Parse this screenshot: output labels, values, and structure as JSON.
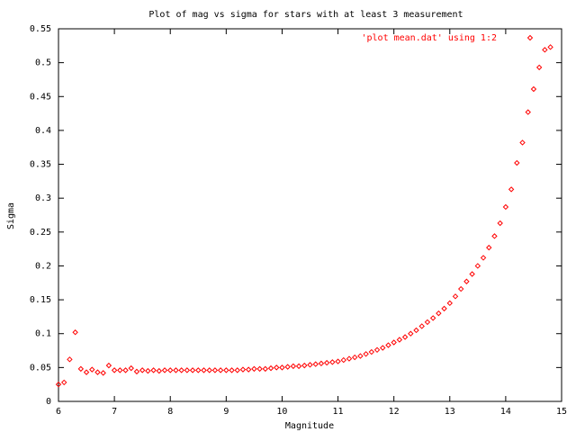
{
  "chart_data": {
    "type": "scatter",
    "title": "Plot of mag vs sigma for stars with at least 3 measurement",
    "x_label": "Magnitude",
    "y_label": "Sigma",
    "legend": "top-right",
    "xlim": [
      6,
      15
    ],
    "xticks": [
      6,
      7,
      8,
      9,
      10,
      11,
      12,
      13,
      14,
      15
    ],
    "ylim": [
      0,
      0.55
    ],
    "yticks": [
      0,
      0.05,
      0.1,
      0.15,
      0.2,
      0.25,
      0.3,
      0.35,
      0.4,
      0.45,
      0.5,
      0.55
    ],
    "series": [
      {
        "name": "'plot mean.dat' using 1:2",
        "color": "#ff0000",
        "x": [
          6.0,
          6.1,
          6.2,
          6.3,
          6.4,
          6.5,
          6.6,
          6.7,
          6.8,
          6.9,
          7.0,
          7.1,
          7.2,
          7.3,
          7.4,
          7.5,
          7.6,
          7.7,
          7.8,
          7.9,
          8.0,
          8.1,
          8.2,
          8.3,
          8.4,
          8.5,
          8.6,
          8.7,
          8.8,
          8.9,
          9.0,
          9.1,
          9.2,
          9.3,
          9.4,
          9.5,
          9.6,
          9.7,
          9.8,
          9.9,
          10.0,
          10.1,
          10.2,
          10.3,
          10.4,
          10.5,
          10.6,
          10.7,
          10.8,
          10.9,
          11.0,
          11.1,
          11.2,
          11.3,
          11.4,
          11.5,
          11.6,
          11.7,
          11.8,
          11.9,
          12.0,
          12.1,
          12.2,
          12.3,
          12.4,
          12.5,
          12.6,
          12.7,
          12.8,
          12.9,
          13.0,
          13.1,
          13.2,
          13.3,
          13.4,
          13.5,
          13.6,
          13.7,
          13.8,
          13.9,
          14.0,
          14.1,
          14.2,
          14.3,
          14.4,
          14.5,
          14.6,
          14.7,
          14.8
        ],
        "values": [
          0.025,
          0.028,
          0.062,
          0.102,
          0.048,
          0.043,
          0.047,
          0.043,
          0.042,
          0.053,
          0.046,
          0.046,
          0.046,
          0.049,
          0.044,
          0.046,
          0.045,
          0.046,
          0.045,
          0.046,
          0.046,
          0.046,
          0.046,
          0.046,
          0.046,
          0.046,
          0.046,
          0.046,
          0.046,
          0.046,
          0.046,
          0.046,
          0.046,
          0.047,
          0.047,
          0.048,
          0.048,
          0.048,
          0.049,
          0.05,
          0.05,
          0.051,
          0.052,
          0.052,
          0.053,
          0.054,
          0.055,
          0.056,
          0.057,
          0.058,
          0.059,
          0.061,
          0.063,
          0.065,
          0.067,
          0.07,
          0.073,
          0.076,
          0.079,
          0.083,
          0.087,
          0.091,
          0.095,
          0.1,
          0.105,
          0.111,
          0.117,
          0.123,
          0.13,
          0.137,
          0.145,
          0.155,
          0.166,
          0.177,
          0.188,
          0.2,
          0.212,
          0.227,
          0.244,
          0.263,
          0.287,
          0.313,
          0.352,
          0.382,
          0.427,
          0.461,
          0.493,
          0.519,
          0.523
        ]
      }
    ]
  }
}
